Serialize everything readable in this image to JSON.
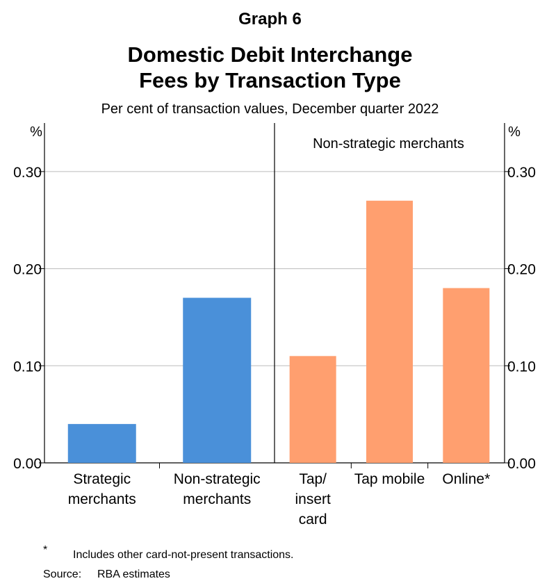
{
  "graph_label": "Graph 6",
  "title_line1": "Domestic Debit Interchange",
  "title_line2": "Fees by Transaction Type",
  "subtitle": "Per cent of transaction values, December quarter 2022",
  "colors": {
    "left_series": "#4a90d9",
    "right_series": "#ff9f6f",
    "grid": "#bbbbbb",
    "axis": "#000000"
  },
  "chart_data": [
    {
      "type": "bar",
      "title": "",
      "ylabel": "%",
      "ylim": [
        0,
        0.35
      ],
      "yticks": [
        "0.00",
        "0.10",
        "0.20",
        "0.30"
      ],
      "categories": [
        [
          "Strategic",
          "merchants"
        ],
        [
          "Non-strategic",
          "merchants"
        ]
      ],
      "values": [
        0.04,
        0.17
      ],
      "color": "#4a90d9"
    },
    {
      "type": "bar",
      "title": "Non-strategic merchants",
      "ylabel": "%",
      "ylim": [
        0,
        0.35
      ],
      "yticks": [
        "0.00",
        "0.10",
        "0.20",
        "0.30"
      ],
      "categories": [
        [
          "Tap/",
          "insert",
          "card"
        ],
        [
          "Tap mobile"
        ],
        [
          "Online*"
        ]
      ],
      "values": [
        0.11,
        0.27,
        0.18
      ],
      "color": "#ff9f6f"
    }
  ],
  "footnote": {
    "mark": "*",
    "text": "Includes other card-not-present transactions."
  },
  "source": {
    "label": "Source:",
    "text": "RBA estimates"
  }
}
